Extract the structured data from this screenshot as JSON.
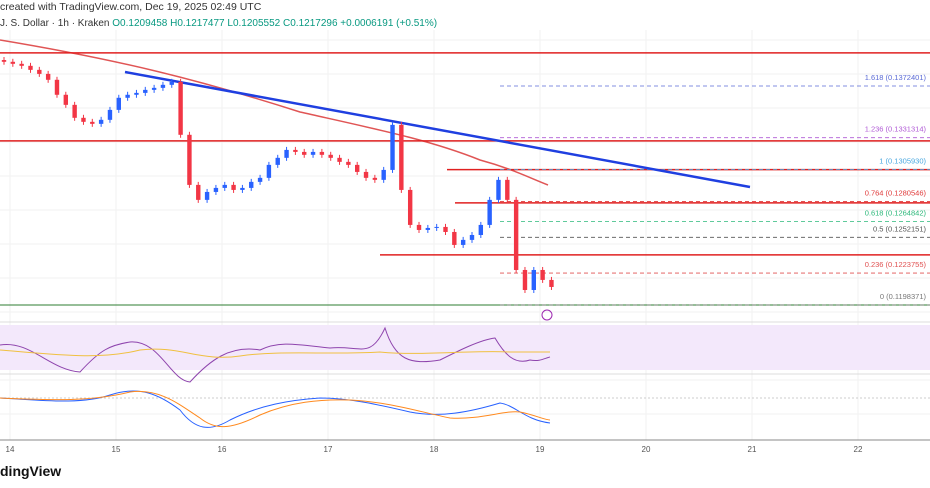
{
  "header": {
    "created": "created with TradingView.com, Dec 19, 2025 02:49 UTC",
    "symbol": "J. S. Dollar · 1h · Kraken",
    "open": "O0.1209458",
    "high": "H0.1217477",
    "low": "L0.1205552",
    "close": "C0.1217296",
    "change": "+0.0006191 (+0.51%)"
  },
  "logo": "dingView",
  "chart_data": {
    "type": "candlestick",
    "interval": "2h (approx.)",
    "x_ticks": [
      "14",
      "15",
      "16",
      "17",
      "18",
      "19",
      "20",
      "21",
      "22"
    ],
    "closes": [
      0.13916,
      0.139,
      0.13884,
      0.13852,
      0.1382,
      0.13773,
      0.13654,
      0.13574,
      0.13471,
      0.13439,
      0.13423,
      0.13455,
      0.13534,
      0.1363,
      0.13654,
      0.13669,
      0.13693,
      0.13709,
      0.13733,
      0.13757,
      0.13336,
      0.12938,
      0.12819,
      0.12882,
      0.12914,
      0.12938,
      0.12898,
      0.12914,
      0.12962,
      0.12994,
      0.13097,
      0.13153,
      0.13216,
      0.132,
      0.13177,
      0.132,
      0.13177,
      0.13153,
      0.13121,
      0.13097,
      0.13041,
      0.12994,
      0.12978,
      0.13057,
      0.13415,
      0.12898,
      0.1262,
      0.1258,
      0.12596,
      0.12604,
      0.12564,
      0.12461,
      0.12501,
      0.1254,
      0.1262,
      0.12819,
      0.12978,
      0.12819,
      0.12262,
      0.12103,
      0.12262,
      0.12183,
      0.12127
    ],
    "first_open": 0.1393,
    "resistance_levels": [
      0.13987,
      0.13288,
      0.12795,
      0.12382
    ],
    "fib_levels": [
      {
        "label": "1.618 (0.1372401)",
        "price": 0.1372401,
        "color": "#5b6bd6"
      },
      {
        "label": "1.236 (0.1331314)",
        "price": 0.1331314,
        "color": "#b15bd6"
      },
      {
        "label": "1 (0.1305930)",
        "price": 0.130593,
        "color": "#4aa8e0"
      },
      {
        "label": "0.764 (0.1280546)",
        "price": 0.1280546,
        "color": "#e03a3a"
      },
      {
        "label": "0.618 (0.1264842)",
        "price": 0.1264842,
        "color": "#2bb87a"
      },
      {
        "label": "0.5 (0.1252151)",
        "price": 0.1252151,
        "color": "#555555"
      },
      {
        "label": "0.236 (0.1223755)",
        "price": 0.1223755,
        "color": "#e05050"
      },
      {
        "label": "0 (0.1198371)",
        "price": 0.1198371,
        "color": "#777777"
      }
    ],
    "colors": {
      "up": "#2962ff",
      "down": "#f23645",
      "trendline": "#1f3fe0",
      "ma": "#e05555"
    }
  }
}
